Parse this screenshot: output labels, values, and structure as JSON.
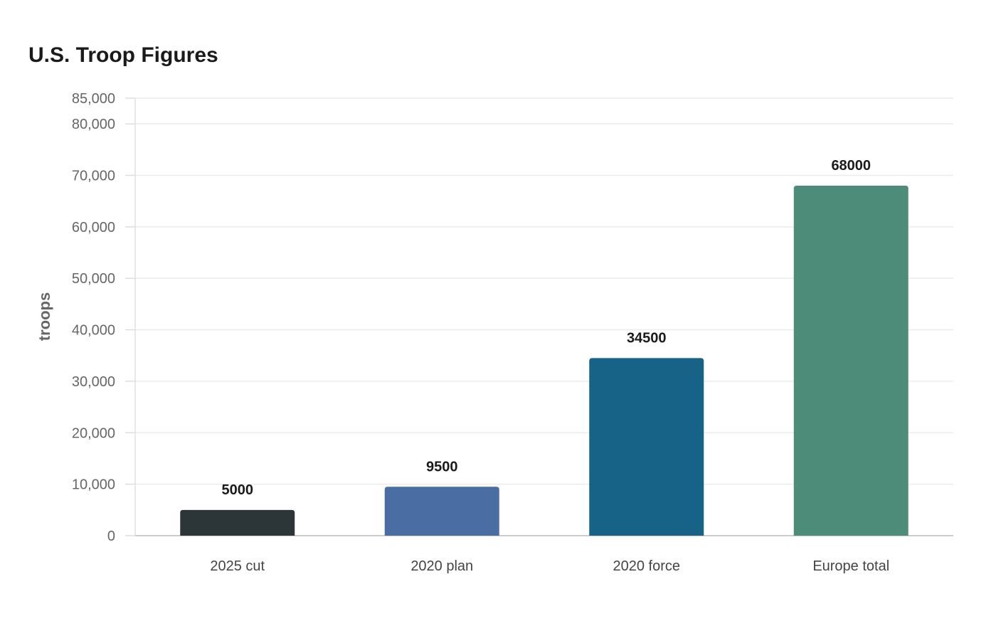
{
  "chart_data": {
    "type": "bar",
    "title": "U.S. Troop Figures",
    "xlabel": "",
    "ylabel": "troops",
    "categories": [
      "2025 cut",
      "2020 plan",
      "2020 force",
      "Europe total"
    ],
    "values": [
      5000,
      9500,
      34500,
      68000
    ],
    "value_labels": [
      "5000",
      "9500",
      "34500",
      "68000"
    ],
    "colors": [
      "#2c3538",
      "#4a6da3",
      "#166387",
      "#4e8c7a"
    ],
    "ylim": [
      0,
      85000
    ],
    "yticks": [
      0,
      10000,
      20000,
      30000,
      40000,
      50000,
      60000,
      70000,
      80000,
      85000
    ],
    "ytick_labels": [
      "0",
      "10,000",
      "20,000",
      "30,000",
      "40,000",
      "50,000",
      "60,000",
      "70,000",
      "80,000",
      "85,000"
    ],
    "grid": true,
    "legend": "none"
  }
}
